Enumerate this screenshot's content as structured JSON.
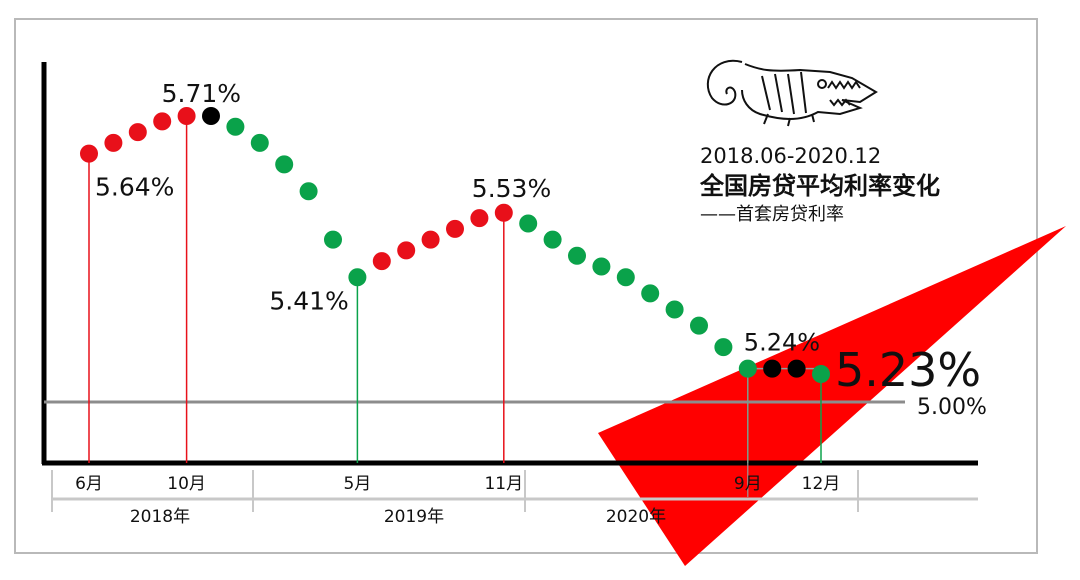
{
  "title": {
    "range": "2018.06-2020.12",
    "main": "全国房贷平均利率变化",
    "sub": "——首套房贷利率"
  },
  "chart_data": {
    "type": "line",
    "title": "全国房贷平均利率变化",
    "subtitle": "——首套房贷利率",
    "reference_line": {
      "value": 5.0,
      "label": "5.00%"
    },
    "months": [
      "2018-06",
      "2018-07",
      "2018-08",
      "2018-09",
      "2018-10",
      "2018-11",
      "2018-12",
      "2019-01",
      "2019-02",
      "2019-03",
      "2019-04",
      "2019-05",
      "2019-06",
      "2019-07",
      "2019-08",
      "2019-09",
      "2019-10",
      "2019-11",
      "2019-12",
      "2020-01",
      "2020-02",
      "2020-03",
      "2020-04",
      "2020-05",
      "2020-06",
      "2020-07",
      "2020-08",
      "2020-09",
      "2020-10",
      "2020-11",
      "2020-12"
    ],
    "values": [
      5.64,
      5.66,
      5.68,
      5.7,
      5.71,
      5.71,
      5.69,
      5.66,
      5.62,
      5.57,
      5.48,
      5.41,
      5.44,
      5.46,
      5.48,
      5.5,
      5.52,
      5.53,
      5.51,
      5.48,
      5.45,
      5.43,
      5.41,
      5.38,
      5.35,
      5.32,
      5.28,
      5.24,
      5.24,
      5.24,
      5.23
    ],
    "point_colors": [
      "red",
      "red",
      "red",
      "red",
      "red",
      "black",
      "green",
      "green",
      "green",
      "green",
      "green",
      "green",
      "red",
      "red",
      "red",
      "red",
      "red",
      "red",
      "green",
      "green",
      "green",
      "green",
      "green",
      "green",
      "green",
      "green",
      "green",
      "green",
      "black",
      "black",
      "green"
    ],
    "callouts": [
      {
        "index": 0,
        "label": "5.64%"
      },
      {
        "index": 4,
        "label": "5.71%"
      },
      {
        "index": 11,
        "label": "5.41%"
      },
      {
        "index": 17,
        "label": "5.53%"
      },
      {
        "index": 27,
        "label": "5.24%"
      },
      {
        "index": 30,
        "label": "5.23%"
      }
    ],
    "x_ticks": [
      {
        "index": 0,
        "label": "6月"
      },
      {
        "index": 4,
        "label": "10月"
      },
      {
        "index": 11,
        "label": "5月"
      },
      {
        "index": 17,
        "label": "11月"
      },
      {
        "index": 27,
        "label": "9月"
      },
      {
        "index": 30,
        "label": "12月"
      }
    ],
    "years": [
      {
        "label": "2018年",
        "from": 0,
        "to": 6
      },
      {
        "label": "2019年",
        "from": 7,
        "to": 18
      },
      {
        "label": "2020年",
        "from": 19,
        "to": 30
      }
    ],
    "colors": {
      "red": "#e8101a",
      "green": "#0aa24a",
      "black": "#000000",
      "arrow": "#ff0000",
      "ref": "#8c8c8c"
    }
  }
}
